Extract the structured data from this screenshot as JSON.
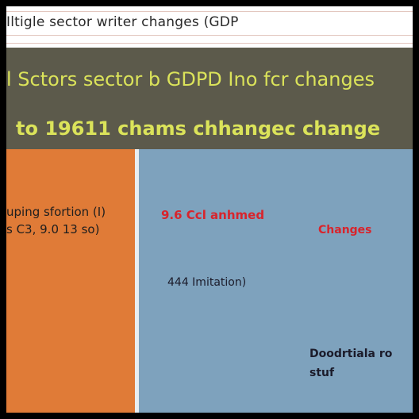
{
  "top": {
    "title": "Iltigle sector writer changes (GDP"
  },
  "header": {
    "line1": "l Sctors sector b GDPD Ino fcr changes",
    "line2": "to 19611 chams chhangec change"
  },
  "left_panel": {
    "line1": "uping sfortion (I)",
    "line2": "s C3, 9.0 13 so)"
  },
  "right_panel": {
    "red_label_1": "9.6 Ccl anhmed",
    "red_label_2": "Changes",
    "dark_label_1": "444 Imitation)",
    "dark_label_2_line1": "Doodrtiala ro",
    "dark_label_2_line2": "stuf"
  },
  "colors": {
    "frame": "#000000",
    "header_band": "#5c5a4b",
    "header_text": "#dbe35a",
    "orange_panel": "#e07b37",
    "blue_panel": "#7ea2bd",
    "red_text": "#d8242c"
  }
}
